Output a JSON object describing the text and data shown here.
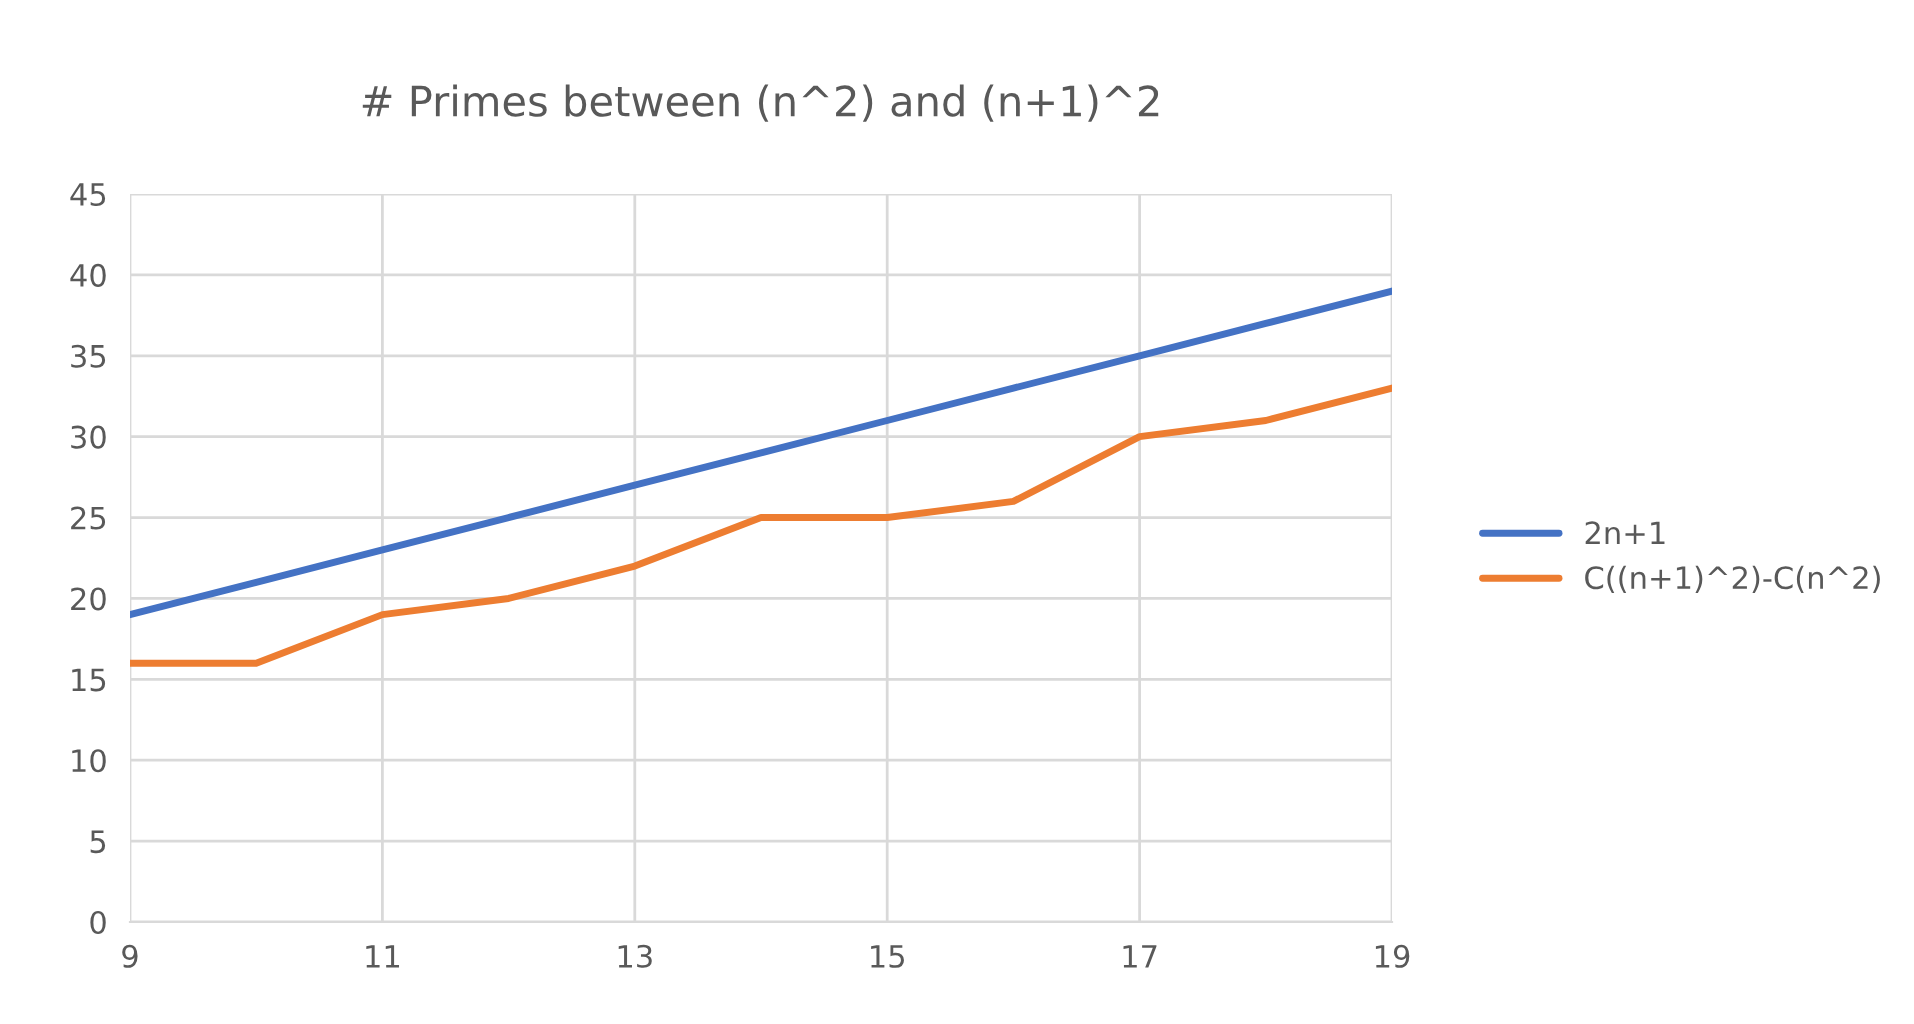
{
  "chart_data": {
    "type": "line",
    "title": "# Primes between (n^2) and (n+1)^2",
    "x": [
      9,
      10,
      11,
      12,
      13,
      14,
      15,
      16,
      17,
      18,
      19
    ],
    "series": [
      {
        "name": "2n+1",
        "color": "#4472c4",
        "values": [
          19,
          21,
          23,
          25,
          27,
          29,
          31,
          33,
          35,
          37,
          39
        ]
      },
      {
        "name": "C((n+1)^2)-C(n^2)",
        "color": "#ed7d31",
        "values": [
          16,
          16,
          19,
          20,
          22,
          25,
          25,
          26,
          30,
          31,
          33
        ]
      }
    ],
    "xlim": [
      9,
      19
    ],
    "xticks": [
      9,
      11,
      13,
      15,
      17,
      19
    ],
    "ylim": [
      0,
      45
    ],
    "yticks": [
      0,
      5,
      10,
      15,
      20,
      25,
      30,
      35,
      40,
      45
    ],
    "grid": true,
    "legend": "right",
    "marker": "none",
    "line_style": "solid"
  }
}
